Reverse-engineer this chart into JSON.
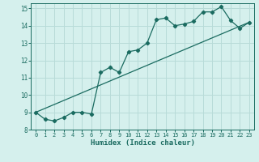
{
  "xlabel": "Humidex (Indice chaleur)",
  "bg_color": "#d5f0ed",
  "grid_color": "#b8dbd8",
  "line_color": "#1a6b60",
  "xlim": [
    -0.5,
    23.5
  ],
  "ylim": [
    8,
    15.3
  ],
  "xticks": [
    0,
    1,
    2,
    3,
    4,
    5,
    6,
    7,
    8,
    9,
    10,
    11,
    12,
    13,
    14,
    15,
    16,
    17,
    18,
    19,
    20,
    21,
    22,
    23
  ],
  "yticks": [
    8,
    9,
    10,
    11,
    12,
    13,
    14,
    15
  ],
  "curve1_x": [
    0,
    1,
    2,
    3,
    4,
    5,
    6,
    7,
    8,
    9,
    10,
    11,
    12,
    13,
    14,
    15,
    16,
    17,
    18,
    19,
    20,
    21,
    22,
    23
  ],
  "curve1_y": [
    9.0,
    8.6,
    8.5,
    8.7,
    9.0,
    9.0,
    8.9,
    11.3,
    11.6,
    11.3,
    12.5,
    12.6,
    13.0,
    14.35,
    14.45,
    14.0,
    14.1,
    14.25,
    14.8,
    14.8,
    15.1,
    14.3,
    13.85,
    14.2
  ],
  "curve2_x": [
    0,
    23
  ],
  "curve2_y": [
    9.0,
    14.2
  ],
  "marker": "D",
  "marker_size": 2.2,
  "line_width": 0.9
}
